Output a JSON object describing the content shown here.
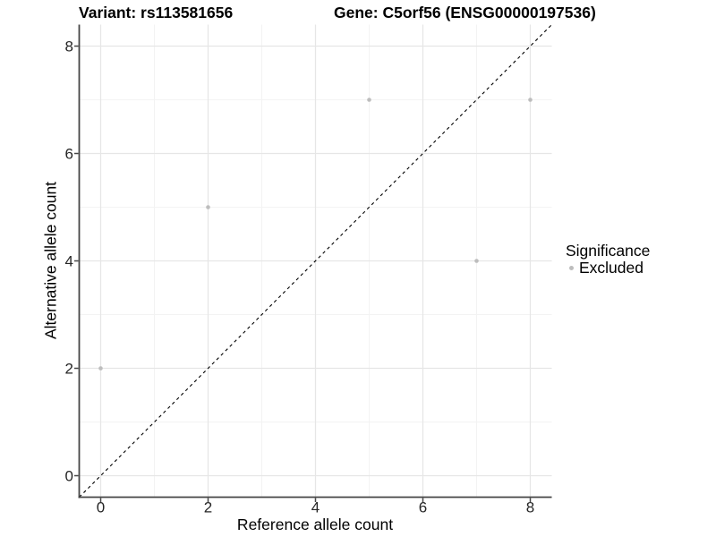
{
  "titles": {
    "variant": "Variant: rs113581656",
    "gene": "Gene: C5orf56 (ENSG00000197536)"
  },
  "legend": {
    "title": "Significance",
    "items": [
      {
        "label": "Excluded",
        "color": "#bdbdbd"
      }
    ]
  },
  "colors": {
    "point": "#bdbdbd",
    "grid_major": "#e6e6e6",
    "grid_minor": "#f3f3f3",
    "axis_line": "#464646",
    "tick_label": "#262626",
    "identity_line": "#000000"
  },
  "chart_data": {
    "type": "scatter",
    "titles": [
      "Variant: rs113581656",
      "Gene: C5orf56 (ENSG00000197536)"
    ],
    "xlabel": "Reference allele count",
    "ylabel": "Alternative allele count",
    "xlim": [
      -0.4,
      8.4
    ],
    "ylim": [
      -0.4,
      8.4
    ],
    "xticks": [
      0,
      2,
      4,
      6,
      8
    ],
    "yticks": [
      0,
      2,
      4,
      6,
      8
    ],
    "xticks_minor": [
      1,
      3,
      5,
      7
    ],
    "yticks_minor": [
      1,
      3,
      5,
      7
    ],
    "grid": "major+minor",
    "legend_position": "right",
    "series": [
      {
        "name": "Excluded",
        "color": "#bdbdbd",
        "points": [
          [
            0,
            2
          ],
          [
            2,
            5
          ],
          [
            5,
            7
          ],
          [
            7,
            4
          ],
          [
            8,
            7
          ]
        ]
      }
    ],
    "reference_line": {
      "kind": "y = x",
      "style": "dashed",
      "color": "#000000"
    }
  }
}
